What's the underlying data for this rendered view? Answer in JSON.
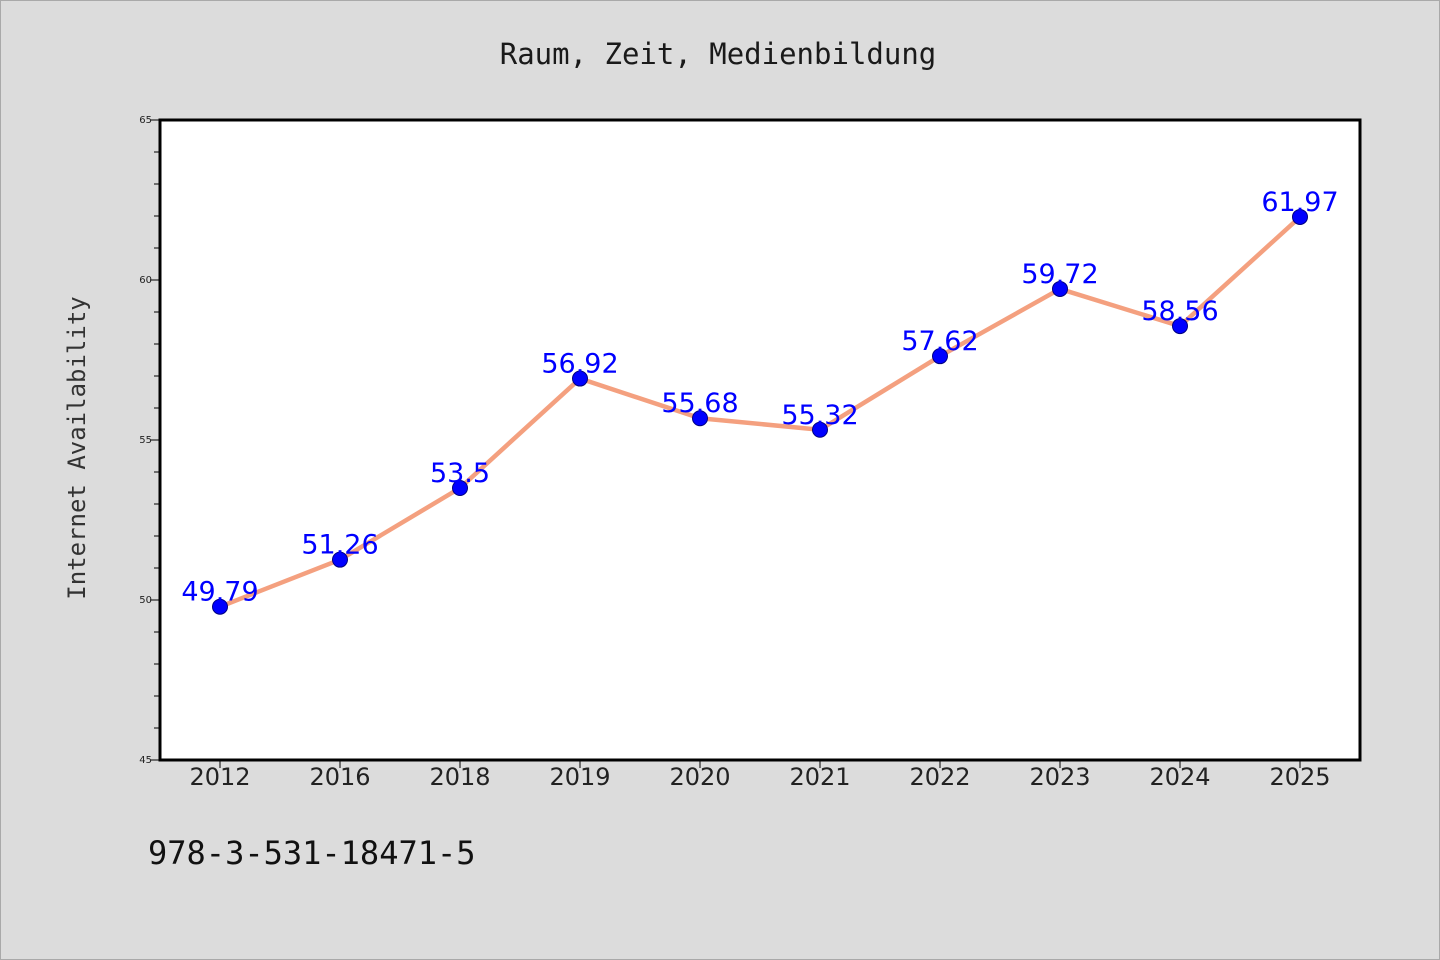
{
  "chart_data": {
    "type": "line",
    "title": "Raum, Zeit, Medienbildung",
    "xlabel": "",
    "ylabel": "Internet Availability",
    "categories": [
      "2012",
      "2016",
      "2018",
      "2019",
      "2020",
      "2021",
      "2022",
      "2023",
      "2024",
      "2025"
    ],
    "series": [
      {
        "values": [
          49.79,
          51.26,
          53.5,
          56.92,
          55.68,
          55.32,
          57.62,
          59.72,
          58.56,
          61.97
        ],
        "line_color": "#f4a07f",
        "marker_color": "#0000ff",
        "label_color": "#0000ff"
      }
    ],
    "ylim": [
      45,
      65
    ],
    "yticks": [
      45,
      50,
      55,
      60,
      65
    ],
    "grid": false,
    "legend": "none"
  },
  "footer": {
    "isbn": "978-3-531-18471-5"
  }
}
